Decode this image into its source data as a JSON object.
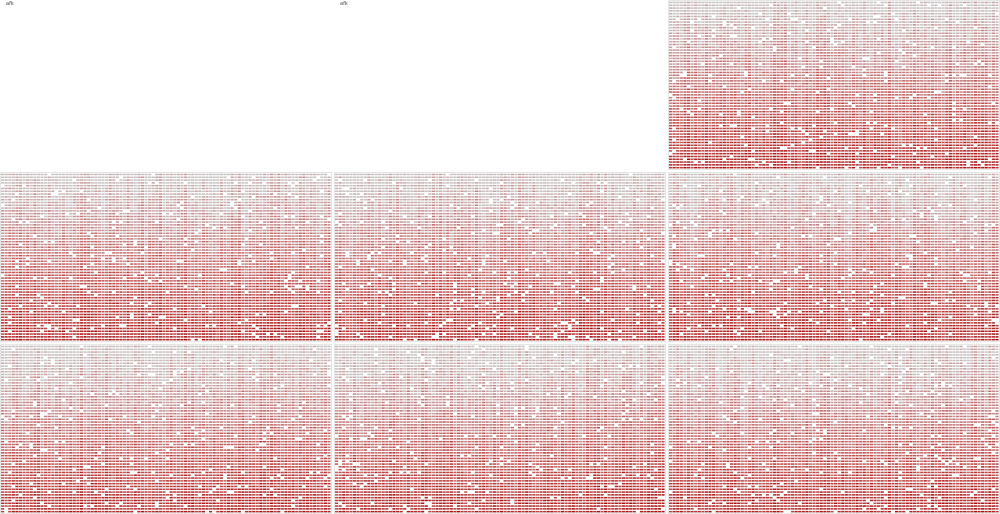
{
  "colors": {
    "background": "#ffffff",
    "low": "#c9c3c3",
    "mid": "#c46262",
    "high": "#a80d0d",
    "frame": "#d6d6d6"
  },
  "chart_data": {
    "type": "heatmap",
    "description_note": "",
    "grid": false,
    "panels": [
      {
        "label": "afk",
        "empty": true
      },
      {
        "label": "afk",
        "empty": true
      },
      {
        "label": "",
        "empty": false,
        "pattern_seed": 11,
        "rows": 60,
        "cols": 92
      },
      {
        "label": "",
        "empty": false,
        "pattern_seed": 23,
        "rows": 60,
        "cols": 92
      },
      {
        "label": "",
        "empty": false,
        "pattern_seed": 37,
        "rows": 60,
        "cols": 92
      },
      {
        "label": "",
        "empty": false,
        "pattern_seed": 41,
        "rows": 60,
        "cols": 92
      },
      {
        "label": "",
        "empty": false,
        "pattern_seed": 53,
        "rows": 60,
        "cols": 92
      },
      {
        "label": "",
        "empty": false,
        "pattern_seed": 67,
        "rows": 60,
        "cols": 92
      },
      {
        "label": "",
        "empty": false,
        "pattern_seed": 79,
        "rows": 60,
        "cols": 92
      }
    ]
  }
}
